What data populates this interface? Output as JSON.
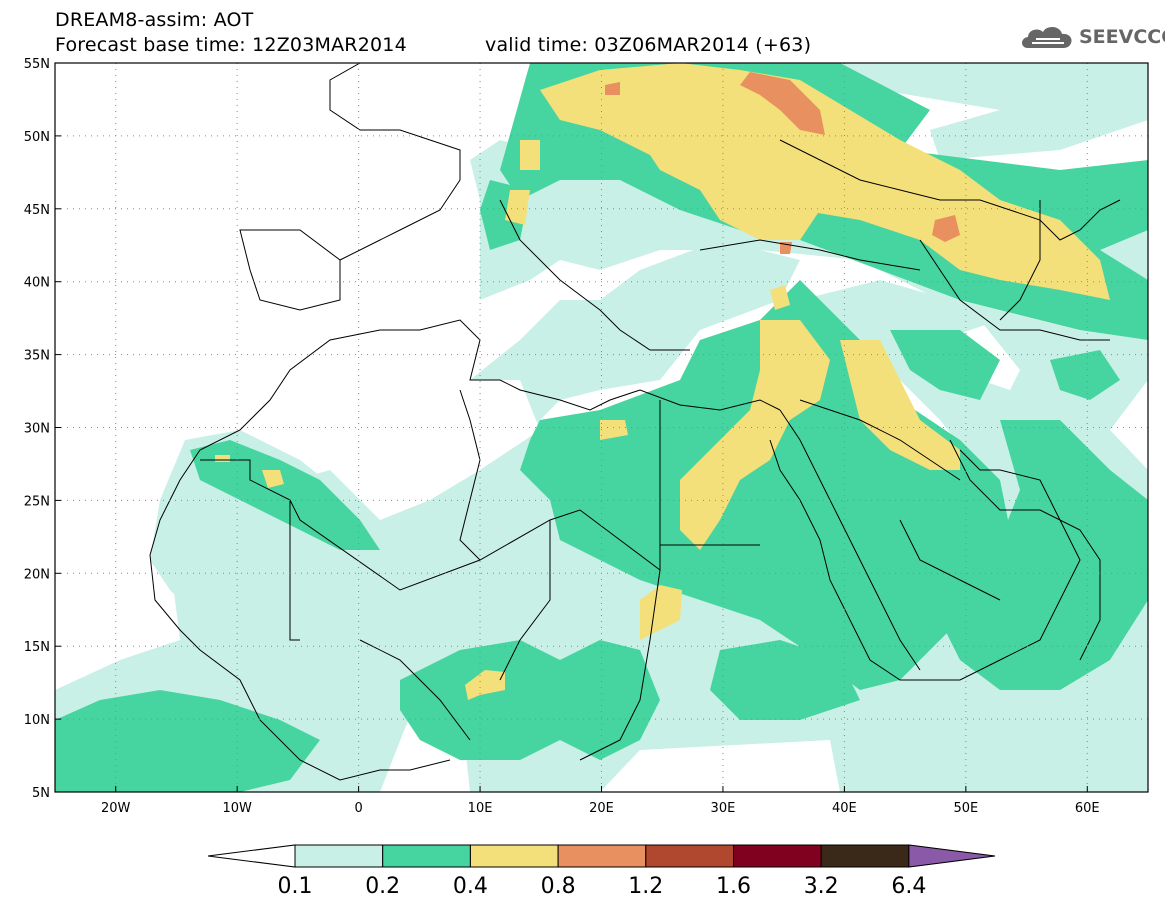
{
  "header": {
    "line1": "DREAM8-assim: AOT",
    "line2": "Forecast base time: 12Z03MAR2014",
    "line3": "valid time: 03Z06MAR2014 (+63)"
  },
  "logo": {
    "text": "SEEVCCC",
    "icon": "cloud-icon"
  },
  "map": {
    "lon_labels": [
      "20W",
      "10W",
      "0",
      "10E",
      "20E",
      "30E",
      "40E",
      "50E",
      "60E"
    ],
    "lat_labels": [
      "55N",
      "50N",
      "45N",
      "40N",
      "35N",
      "30N",
      "25N",
      "20N",
      "15N",
      "10N",
      "5N"
    ],
    "lon_range": [
      -25,
      65
    ],
    "lat_range": [
      5,
      55
    ],
    "grid": "dotted"
  },
  "colorbar": {
    "labels": [
      "0.1",
      "0.2",
      "0.4",
      "0.8",
      "1.2",
      "1.6",
      "3.2",
      "6.4"
    ],
    "colors": [
      "#ffffff",
      "#c8f0e6",
      "#46d4a0",
      "#f4e07a",
      "#e89060",
      "#b04830",
      "#800020",
      "#3a2818",
      "#8a5aa8"
    ]
  },
  "colors": {
    "lev1": "#c8f0e6",
    "lev2": "#46d4a0",
    "lev3": "#f4e07a",
    "lev4": "#e89060"
  }
}
